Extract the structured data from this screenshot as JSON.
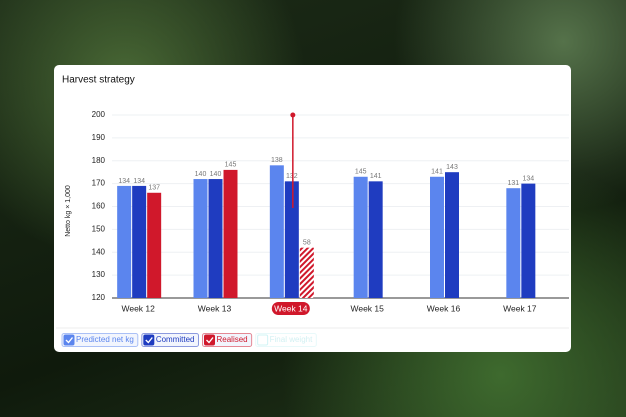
{
  "chart_data": {
    "type": "bar",
    "title": "Harvest strategy",
    "y_label": "Netto kg × 1,000",
    "categories": [
      "Week 12",
      "Week 13",
      "Week 14",
      "Week 15",
      "Week 16",
      "Week 17"
    ],
    "series": [
      {
        "name": "Predicted net kg",
        "color": "#5b85ee",
        "enabled": true,
        "values": [
          169,
          172,
          178,
          173,
          173,
          168
        ],
        "top_labels": [
          134,
          140,
          138,
          145,
          141,
          131
        ]
      },
      {
        "name": "Committed",
        "color": "#1f3cc0",
        "enabled": true,
        "values": [
          169,
          172,
          171,
          171,
          175,
          170
        ],
        "top_labels": [
          134,
          140,
          132,
          141,
          143,
          134
        ]
      },
      {
        "name": "Realised",
        "color": "#d0182b",
        "enabled": true,
        "values": [
          166,
          176,
          142,
          null,
          null,
          null
        ],
        "top_labels": [
          137,
          145,
          58,
          null,
          null,
          null
        ]
      },
      {
        "name": "Final weight",
        "color": "#7fe0e6",
        "enabled": false,
        "values": [
          null,
          null,
          null,
          null,
          null,
          null
        ],
        "top_labels": [
          null,
          null,
          null,
          null,
          null,
          null
        ]
      }
    ],
    "selected_index": 2,
    "marker": {
      "category_index": 2,
      "value": 200
    },
    "ylim": [
      120,
      200
    ],
    "yticks": [
      120,
      130,
      140,
      150,
      160,
      170,
      180,
      190,
      200
    ],
    "grid": true
  }
}
